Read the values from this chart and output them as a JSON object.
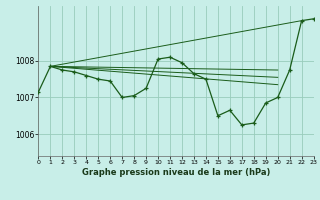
{
  "background_color": "#c8eee8",
  "grid_color": "#99ccbb",
  "line_color": "#1a5c1a",
  "title": "Graphe pression niveau de la mer (hPa)",
  "xlim": [
    0,
    23
  ],
  "ylim": [
    1005.4,
    1009.5
  ],
  "yticks": [
    1006,
    1007,
    1008
  ],
  "xticks": [
    0,
    1,
    2,
    3,
    4,
    5,
    6,
    7,
    8,
    9,
    10,
    11,
    12,
    13,
    14,
    15,
    16,
    17,
    18,
    19,
    20,
    21,
    22,
    23
  ],
  "main_line": {
    "x": [
      0,
      1,
      2,
      3,
      4,
      5,
      6,
      7,
      8,
      9,
      10,
      11,
      12,
      13,
      14,
      15,
      16,
      17,
      18,
      19,
      20,
      21,
      22,
      23
    ],
    "y": [
      1007.15,
      1007.85,
      1007.75,
      1007.7,
      1007.6,
      1007.5,
      1007.45,
      1007.0,
      1007.05,
      1007.25,
      1008.05,
      1008.1,
      1007.95,
      1007.65,
      1007.5,
      1006.5,
      1006.65,
      1006.25,
      1006.3,
      1006.85,
      1007.0,
      1007.75,
      1009.1,
      1009.15
    ]
  },
  "straight_lines": [
    {
      "x": [
        1,
        22
      ],
      "y": [
        1007.85,
        1009.1
      ]
    },
    {
      "x": [
        1,
        20
      ],
      "y": [
        1007.85,
        1007.75
      ]
    },
    {
      "x": [
        1,
        20
      ],
      "y": [
        1007.85,
        1007.55
      ]
    },
    {
      "x": [
        1,
        20
      ],
      "y": [
        1007.85,
        1007.35
      ]
    }
  ]
}
